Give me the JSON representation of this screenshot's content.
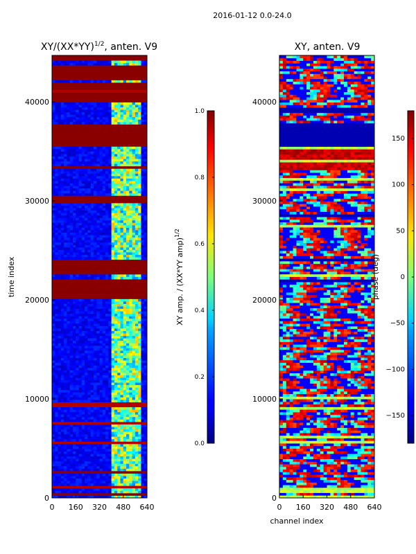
{
  "figure": {
    "suptitle": "2016-01-12 0.0-24.0"
  },
  "chart_data": [
    {
      "type": "heatmap",
      "title": "XY/(XX*YY)",
      "title_exponent": "1/2",
      "title_suffix": ", anten. V9",
      "xlabel": "",
      "ylabel": "time index",
      "x_ticks": [
        0,
        160,
        320,
        480,
        640
      ],
      "y_ticks": [
        0,
        10000,
        20000,
        30000,
        40000
      ],
      "xlim": [
        0,
        640
      ],
      "ylim": [
        0,
        44700
      ],
      "colormap": "jet",
      "colorbar": {
        "label": "XY amp. / (XX*YY amp)",
        "label_exponent": "1/2",
        "range": [
          0.0,
          1.0
        ],
        "ticks": [
          "0.0",
          "0.2",
          "0.4",
          "0.6",
          "0.8",
          "1.0"
        ]
      },
      "saturated_bands": [
        [
          200,
          450
        ],
        [
          2500,
          2700
        ],
        [
          20000,
          22200
        ],
        [
          22700,
          23300
        ],
        [
          23400,
          24000
        ],
        [
          29900,
          30600
        ],
        [
          33300,
          33500
        ],
        [
          35400,
          37800
        ],
        [
          40000,
          41000
        ],
        [
          41300,
          41900
        ],
        [
          42200,
          43100
        ],
        [
          43200,
          43600
        ],
        [
          44300,
          44600
        ]
      ]
    },
    {
      "type": "heatmap",
      "title": "XY, anten. V9",
      "xlabel": "channel index",
      "ylabel": "",
      "x_ticks": [
        0,
        160,
        320,
        480,
        640
      ],
      "y_ticks": [
        0,
        10000,
        20000,
        30000,
        40000
      ],
      "xlim": [
        0,
        640
      ],
      "ylim": [
        0,
        44700
      ],
      "colormap": "jet",
      "colorbar": {
        "label": "phase (deg)",
        "range": [
          -180,
          180
        ],
        "ticks": [
          "−150",
          "−100",
          "−50",
          "0",
          "50",
          "100",
          "150"
        ]
      },
      "masked_bands": [
        [
          35400,
          37800
        ],
        [
          39000,
          39400
        ],
        [
          28500,
          28700
        ],
        [
          24000,
          24300
        ],
        [
          21900,
          22100
        ]
      ]
    }
  ]
}
